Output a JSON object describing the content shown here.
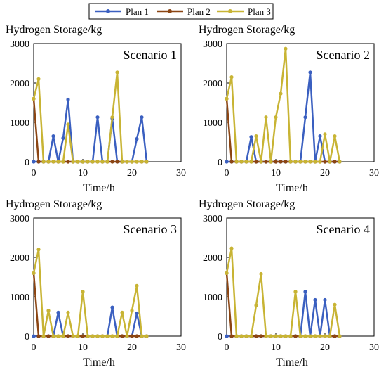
{
  "legend": [
    {
      "name": "Plan 1",
      "color": "#3a5fc0"
    },
    {
      "name": "Plan 2",
      "color": "#8b4513"
    },
    {
      "name": "Plan 3",
      "color": "#c8b434"
    }
  ],
  "chart_data": [
    {
      "type": "line",
      "title": "Scenario 1",
      "ylabel": "Hydrogen Storage/kg",
      "xlabel": "Time/h",
      "xlim": [
        0,
        30
      ],
      "ylim": [
        0,
        3000
      ],
      "xticks": [
        0,
        10,
        20,
        30
      ],
      "yticks": [
        0,
        1000,
        2000,
        3000
      ],
      "grid": false,
      "series": [
        {
          "name": "Plan 1",
          "color": "#3a5fc0",
          "x": [
            0,
            1,
            2,
            3,
            4,
            5,
            6,
            7,
            8,
            9,
            10,
            11,
            12,
            13,
            14,
            15,
            16,
            17,
            18,
            19,
            20,
            21,
            22,
            23
          ],
          "y": [
            0,
            0,
            0,
            0,
            650,
            0,
            600,
            1580,
            0,
            0,
            0,
            0,
            0,
            1130,
            0,
            0,
            1100,
            0,
            0,
            0,
            0,
            580,
            1130,
            0
          ]
        },
        {
          "name": "Plan 2",
          "color": "#8b4513",
          "x": [
            0,
            1,
            2,
            3,
            4,
            5,
            6,
            7,
            8,
            9,
            10,
            11,
            12,
            13,
            14,
            15,
            16,
            17,
            18,
            19,
            20,
            21,
            22,
            23
          ],
          "y": [
            1600,
            0,
            0,
            0,
            0,
            0,
            0,
            0,
            0,
            0,
            0,
            0,
            0,
            0,
            0,
            0,
            0,
            0,
            0,
            0,
            0,
            0,
            0,
            0
          ]
        },
        {
          "name": "Plan 3",
          "color": "#c8b434",
          "x": [
            0,
            1,
            2,
            3,
            4,
            5,
            6,
            7,
            8,
            9,
            10,
            11,
            12,
            13,
            14,
            15,
            16,
            17,
            18,
            19,
            20,
            21,
            22,
            23
          ],
          "y": [
            1600,
            2100,
            0,
            0,
            0,
            0,
            0,
            950,
            0,
            0,
            0,
            0,
            0,
            0,
            0,
            0,
            1130,
            2270,
            0,
            0,
            0,
            0,
            0,
            0
          ]
        }
      ]
    },
    {
      "type": "line",
      "title": "Scenario 2",
      "ylabel": "Hydrogen Storage/kg",
      "xlabel": "Time/h",
      "xlim": [
        0,
        30
      ],
      "ylim": [
        0,
        3000
      ],
      "xticks": [
        0,
        10,
        20,
        30
      ],
      "yticks": [
        0,
        1000,
        2000,
        3000
      ],
      "grid": false,
      "series": [
        {
          "name": "Plan 1",
          "color": "#3a5fc0",
          "x": [
            0,
            1,
            2,
            3,
            4,
            5,
            6,
            7,
            8,
            9,
            10,
            11,
            12,
            13,
            14,
            15,
            16,
            17,
            18,
            19,
            20,
            21,
            22,
            23
          ],
          "y": [
            0,
            0,
            0,
            0,
            0,
            630,
            0,
            0,
            0,
            0,
            0,
            0,
            0,
            0,
            0,
            0,
            1130,
            2270,
            0,
            650,
            0,
            0,
            0,
            0
          ]
        },
        {
          "name": "Plan 2",
          "color": "#8b4513",
          "x": [
            0,
            1,
            2,
            3,
            4,
            5,
            6,
            7,
            8,
            9,
            10,
            11,
            12,
            13,
            14,
            15,
            16,
            17,
            18,
            19,
            20,
            21,
            22,
            23
          ],
          "y": [
            1600,
            0,
            0,
            0,
            0,
            0,
            0,
            0,
            0,
            0,
            0,
            0,
            0,
            0,
            0,
            0,
            0,
            0,
            0,
            0,
            0,
            0,
            0,
            0
          ]
        },
        {
          "name": "Plan 3",
          "color": "#c8b434",
          "x": [
            0,
            1,
            2,
            3,
            4,
            5,
            6,
            7,
            8,
            9,
            10,
            11,
            12,
            13,
            14,
            15,
            16,
            17,
            18,
            19,
            20,
            21,
            22,
            23
          ],
          "y": [
            1600,
            2150,
            0,
            0,
            0,
            0,
            650,
            0,
            1130,
            0,
            1130,
            1730,
            2870,
            0,
            0,
            0,
            0,
            0,
            0,
            0,
            700,
            0,
            650,
            0
          ]
        }
      ]
    },
    {
      "type": "line",
      "title": "Scenario 3",
      "ylabel": "Hydrogen Storage/kg",
      "xlabel": "Time/h",
      "xlim": [
        0,
        30
      ],
      "ylim": [
        0,
        3000
      ],
      "xticks": [
        0,
        10,
        20,
        30
      ],
      "yticks": [
        0,
        1000,
        2000,
        3000
      ],
      "grid": false,
      "series": [
        {
          "name": "Plan 1",
          "color": "#3a5fc0",
          "x": [
            0,
            1,
            2,
            3,
            4,
            5,
            6,
            7,
            8,
            9,
            10,
            11,
            12,
            13,
            14,
            15,
            16,
            17,
            18,
            19,
            20,
            21,
            22,
            23
          ],
          "y": [
            0,
            0,
            0,
            0,
            0,
            600,
            0,
            0,
            0,
            0,
            0,
            0,
            0,
            0,
            0,
            0,
            730,
            0,
            0,
            0,
            0,
            580,
            0,
            0
          ]
        },
        {
          "name": "Plan 2",
          "color": "#8b4513",
          "x": [
            0,
            1,
            2,
            3,
            4,
            5,
            6,
            7,
            8,
            9,
            10,
            11,
            12,
            13,
            14,
            15,
            16,
            17,
            18,
            19,
            20,
            21,
            22,
            23
          ],
          "y": [
            1600,
            0,
            0,
            0,
            0,
            0,
            0,
            0,
            0,
            0,
            0,
            0,
            0,
            0,
            0,
            0,
            0,
            0,
            0,
            0,
            0,
            0,
            0,
            0
          ]
        },
        {
          "name": "Plan 3",
          "color": "#c8b434",
          "x": [
            0,
            1,
            2,
            3,
            4,
            5,
            6,
            7,
            8,
            9,
            10,
            11,
            12,
            13,
            14,
            15,
            16,
            17,
            18,
            19,
            20,
            21,
            22,
            23
          ],
          "y": [
            1600,
            2200,
            0,
            650,
            0,
            0,
            0,
            600,
            0,
            0,
            1130,
            0,
            0,
            0,
            0,
            0,
            0,
            0,
            600,
            0,
            650,
            1280,
            0,
            0
          ]
        }
      ]
    },
    {
      "type": "line",
      "title": "Scenario 4",
      "ylabel": "Hydrogen Storage/kg",
      "xlabel": "Time/h",
      "xlim": [
        0,
        30
      ],
      "ylim": [
        0,
        3000
      ],
      "xticks": [
        0,
        10,
        20,
        30
      ],
      "yticks": [
        0,
        1000,
        2000,
        3000
      ],
      "grid": false,
      "series": [
        {
          "name": "Plan 1",
          "color": "#3a5fc0",
          "x": [
            0,
            1,
            2,
            3,
            4,
            5,
            6,
            7,
            8,
            9,
            10,
            11,
            12,
            13,
            14,
            15,
            16,
            17,
            18,
            19,
            20,
            21,
            22,
            23
          ],
          "y": [
            0,
            0,
            0,
            0,
            0,
            0,
            0,
            0,
            0,
            0,
            0,
            0,
            0,
            0,
            0,
            0,
            1130,
            0,
            920,
            0,
            920,
            0,
            0,
            0
          ]
        },
        {
          "name": "Plan 2",
          "color": "#8b4513",
          "x": [
            0,
            1,
            2,
            3,
            4,
            5,
            6,
            7,
            8,
            9,
            10,
            11,
            12,
            13,
            14,
            15,
            16,
            17,
            18,
            19,
            20,
            21,
            22,
            23
          ],
          "y": [
            1600,
            0,
            0,
            0,
            0,
            0,
            0,
            0,
            0,
            0,
            0,
            0,
            0,
            0,
            0,
            0,
            0,
            0,
            0,
            0,
            0,
            0,
            0,
            0
          ]
        },
        {
          "name": "Plan 3",
          "color": "#c8b434",
          "x": [
            0,
            1,
            2,
            3,
            4,
            5,
            6,
            7,
            8,
            9,
            10,
            11,
            12,
            13,
            14,
            15,
            16,
            17,
            18,
            19,
            20,
            21,
            22,
            23
          ],
          "y": [
            1600,
            2230,
            0,
            0,
            0,
            0,
            780,
            1580,
            0,
            0,
            0,
            0,
            0,
            0,
            1130,
            0,
            0,
            0,
            0,
            0,
            0,
            0,
            800,
            0
          ]
        }
      ]
    }
  ]
}
